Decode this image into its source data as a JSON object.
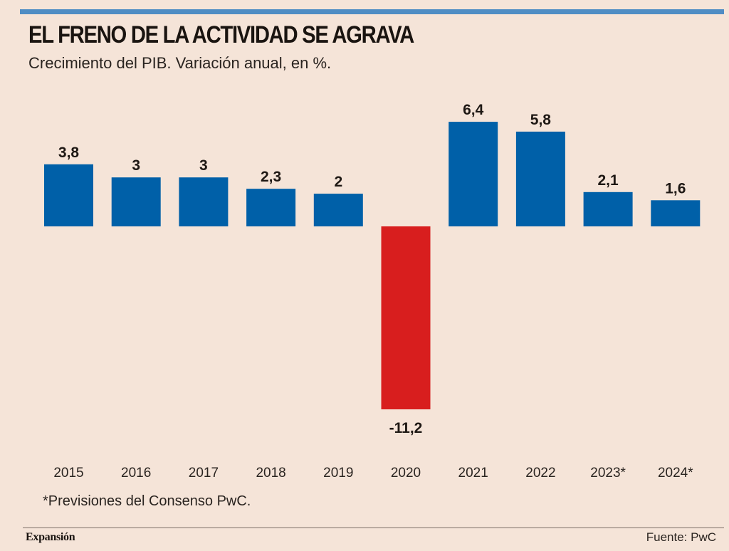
{
  "header": {
    "title": "EL FRENO DE LA ACTIVIDAD SE AGRAVA",
    "subtitle": "Crecimiento del PIB. Variación anual, en %."
  },
  "footer": {
    "note": "*Previsiones del Consenso PwC.",
    "brand": "Expansión",
    "source": "Fuente: PwC"
  },
  "colors": {
    "background": "#F5E4D8",
    "accent_rule": "#4F8DC4",
    "positive_bar": "#0060A8",
    "negative_bar": "#D81E1E",
    "text": "#1e1814"
  },
  "chart_data": {
    "type": "bar",
    "title": "EL FRENO DE LA ACTIVIDAD SE AGRAVA",
    "subtitle": "Crecimiento del PIB. Variación anual, en %.",
    "xlabel": "",
    "ylabel": "",
    "categories": [
      "2015",
      "2016",
      "2017",
      "2018",
      "2019",
      "2020",
      "2021",
      "2022",
      "2023*",
      "2024*"
    ],
    "values": [
      3.8,
      3,
      3,
      2.3,
      2,
      -11.2,
      6.4,
      5.8,
      2.1,
      1.6
    ],
    "data_labels": [
      "3,8",
      "3",
      "3",
      "2,3",
      "2",
      "-11,2",
      "6,4",
      "5,8",
      "2,1",
      "1,6"
    ],
    "ylim": [
      -11.2,
      6.4
    ],
    "grid": false,
    "legend": "none",
    "annotations": [
      "*Previsiones del Consenso PwC."
    ]
  }
}
